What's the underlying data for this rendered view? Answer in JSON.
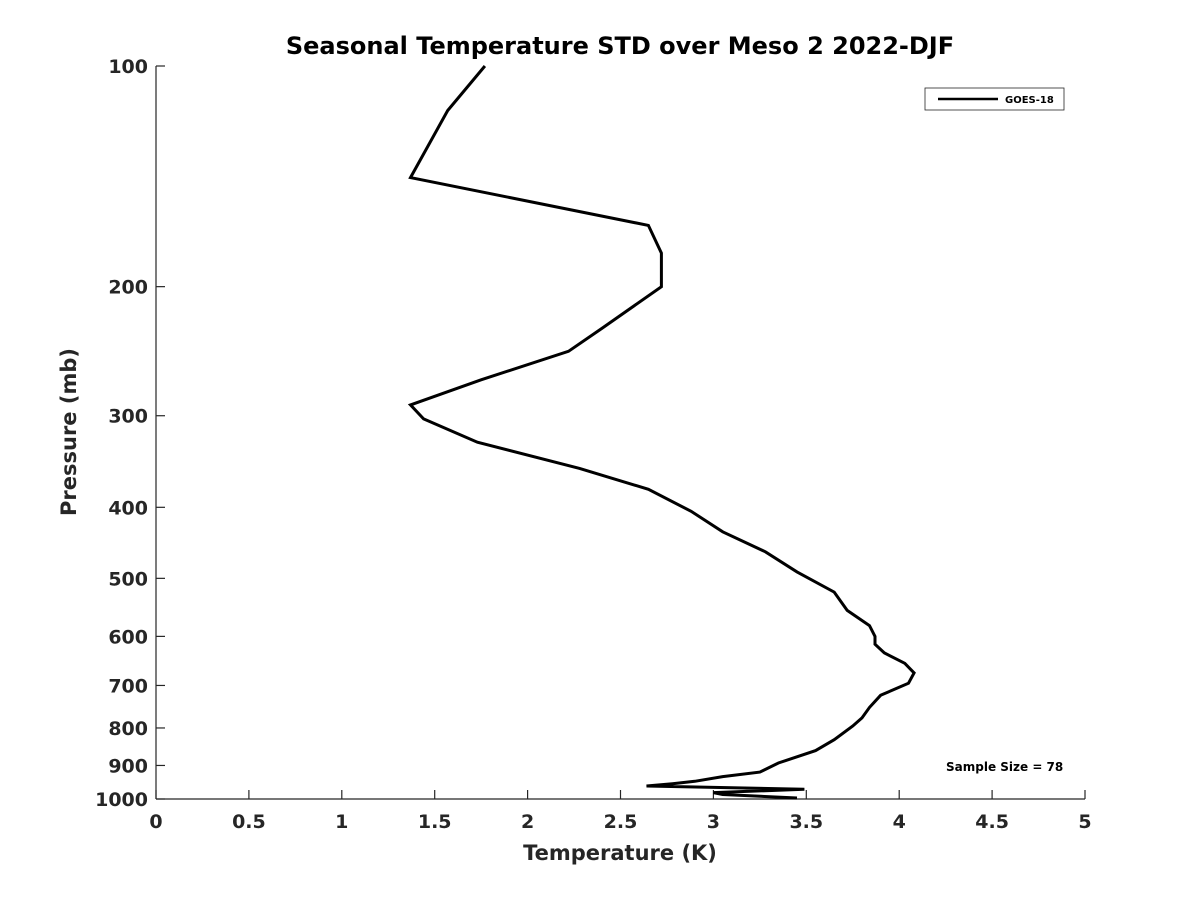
{
  "chart_data": {
    "type": "line",
    "title": "Seasonal Temperature STD over Meso 2  2022-DJF",
    "xlabel": "Temperature (K)",
    "ylabel": "Pressure (mb)",
    "xlim": [
      0,
      5
    ],
    "ylim": [
      100,
      1000
    ],
    "y_scale": "log",
    "y_reversed": true,
    "x_ticks": [
      "0",
      "0.5",
      "1",
      "1.5",
      "2",
      "2.5",
      "3",
      "3.5",
      "4",
      "4.5",
      "5"
    ],
    "y_ticks": [
      "100",
      "200",
      "300",
      "400",
      "500",
      "600",
      "700",
      "800",
      "900",
      "1000"
    ],
    "grid": false,
    "legend_position": "top-right",
    "annotation": "Sample Size = 78",
    "series": [
      {
        "name": "GOES-18",
        "color": "#000000",
        "x": [
          1.77,
          1.57,
          1.37,
          2.65,
          2.72,
          2.72,
          2.4,
          2.22,
          1.75,
          1.37,
          1.44,
          1.73,
          2.28,
          2.65,
          2.88,
          3.05,
          3.28,
          3.45,
          3.65,
          3.72,
          3.84,
          3.87,
          3.87,
          3.92,
          4.03,
          4.08,
          4.05,
          3.9,
          3.84,
          3.8,
          3.75,
          3.65,
          3.55,
          3.35,
          3.25,
          3.05,
          2.9,
          2.78,
          2.64,
          3.49,
          3.0,
          3.05,
          3.45
        ],
        "y": [
          100,
          115,
          142,
          165,
          180,
          200,
          228,
          245,
          268,
          290,
          303,
          326,
          354,
          378,
          405,
          432,
          460,
          490,
          522,
          553,
          580,
          600,
          615,
          632,
          653,
          673,
          695,
          722,
          750,
          775,
          795,
          830,
          859,
          893,
          919,
          932,
          946,
          953,
          960,
          970,
          980,
          986,
          997
        ]
      }
    ]
  }
}
